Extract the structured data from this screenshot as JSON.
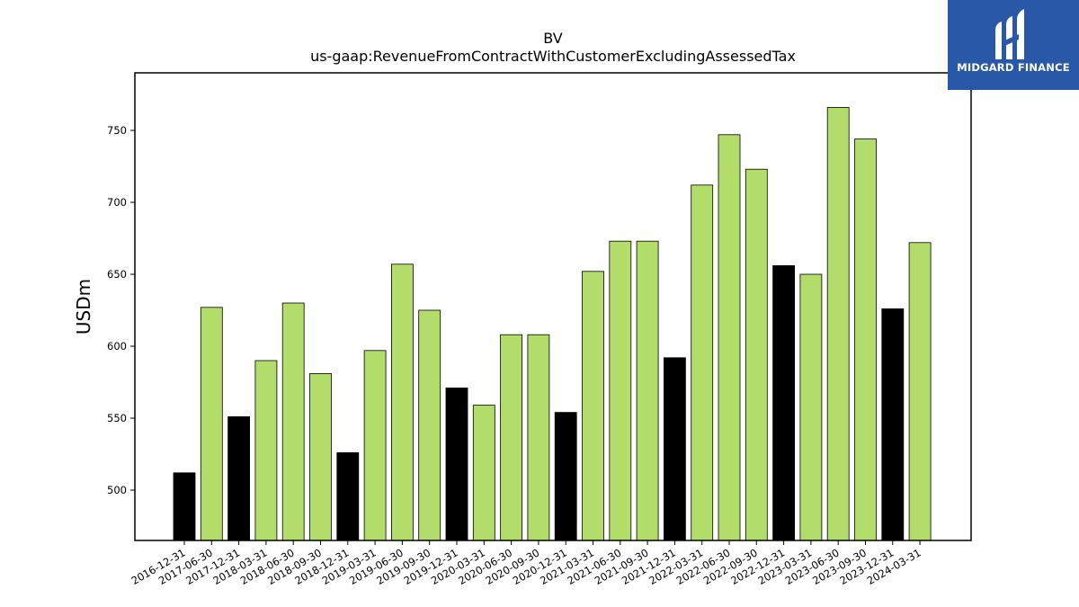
{
  "chart_data": {
    "type": "bar",
    "title": "BV",
    "subtitle": "us-gaap:RevenueFromContractWithCustomerExcludingAssessedTax",
    "xlabel": "",
    "ylabel": "USDm",
    "ylim": [
      465,
      790
    ],
    "yticks": [
      500,
      550,
      600,
      650,
      700,
      750
    ],
    "grid": false,
    "bar_colors": {
      "Q4": "#000000",
      "other": "#b2dd6b"
    },
    "categories": [
      "2016-12-31",
      "2017-06-30",
      "2017-12-31",
      "2018-03-31",
      "2018-06-30",
      "2018-09-30",
      "2018-12-31",
      "2019-03-31",
      "2019-06-30",
      "2019-09-30",
      "2019-12-31",
      "2020-03-31",
      "2020-06-30",
      "2020-09-30",
      "2020-12-31",
      "2021-03-31",
      "2021-06-30",
      "2021-09-30",
      "2021-12-31",
      "2022-03-31",
      "2022-06-30",
      "2022-09-30",
      "2022-12-31",
      "2023-03-31",
      "2023-06-30",
      "2023-09-30",
      "2023-12-31",
      "2024-03-31"
    ],
    "values": [
      512,
      627,
      551,
      590,
      630,
      581,
      526,
      597,
      657,
      625,
      571,
      559,
      608,
      608,
      554,
      652,
      673,
      673,
      592,
      712,
      747,
      723,
      656,
      650,
      766,
      744,
      626,
      672
    ]
  },
  "logo": {
    "text": "MIDGARD FINANCE",
    "color": "#2a58a8"
  }
}
